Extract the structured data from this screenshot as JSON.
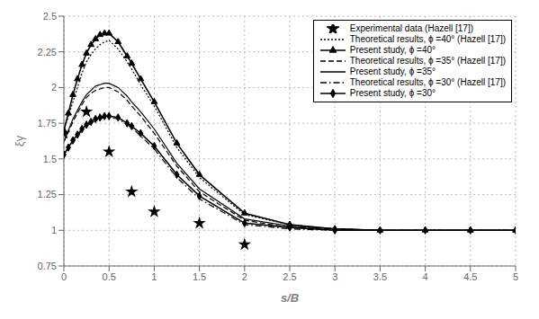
{
  "chart_data": {
    "type": "line",
    "xlabel": "s/B",
    "ylabel": "ξγ",
    "xlim": [
      0,
      5
    ],
    "ylim": [
      0.75,
      2.5
    ],
    "xticks": [
      0,
      0.5,
      1.0,
      1.5,
      2.0,
      2.5,
      3.0,
      3.5,
      4.0,
      4.5,
      5.0
    ],
    "yticks": [
      0.75,
      1.0,
      1.25,
      1.5,
      1.75,
      2.0,
      2.25,
      2.5
    ],
    "grid": true,
    "legend": "upper right",
    "series": [
      {
        "name": "Experimental data (Hazell [17])",
        "type": "scatter",
        "marker": "star",
        "color": "#000000",
        "x": [
          0.0,
          0.25,
          0.5,
          0.75,
          1.0,
          1.5,
          2.0
        ],
        "values": [
          1.68,
          1.83,
          1.55,
          1.27,
          1.13,
          1.05,
          0.9
        ]
      },
      {
        "name": "Theoretical results, ϕ =40° (Hazell [17])",
        "type": "line",
        "line_style": "dotted",
        "color": "#000000",
        "x": [
          0.0,
          0.05,
          0.1,
          0.15,
          0.2,
          0.25,
          0.3,
          0.35,
          0.4,
          0.45,
          0.5,
          0.6,
          0.7,
          0.75,
          0.85,
          1.0,
          1.25,
          1.5,
          2.0,
          2.5,
          3.0,
          3.5,
          4.0,
          4.5,
          5.0
        ],
        "values": [
          1.7,
          1.8,
          1.9,
          2.0,
          2.1,
          2.18,
          2.23,
          2.27,
          2.3,
          2.32,
          2.33,
          2.27,
          2.18,
          2.13,
          2.02,
          1.87,
          1.58,
          1.37,
          1.11,
          1.04,
          1.01,
          1.0,
          1.0,
          1.0,
          1.0
        ]
      },
      {
        "name": "Present study, ϕ =40°",
        "type": "line",
        "line_style": "solid",
        "marker": "triangle",
        "color": "#000000",
        "x": [
          0.0,
          0.05,
          0.1,
          0.15,
          0.2,
          0.25,
          0.3,
          0.35,
          0.4,
          0.45,
          0.5,
          0.6,
          0.7,
          0.75,
          0.85,
          1.0,
          1.25,
          1.5,
          2.0,
          2.5,
          3.0,
          3.5,
          4.0,
          4.5,
          5.0
        ],
        "values": [
          1.7,
          1.82,
          1.95,
          2.06,
          2.16,
          2.24,
          2.3,
          2.34,
          2.37,
          2.38,
          2.38,
          2.32,
          2.22,
          2.17,
          2.06,
          1.9,
          1.61,
          1.39,
          1.12,
          1.04,
          1.01,
          1.0,
          1.0,
          1.0,
          1.0
        ]
      },
      {
        "name": "Theoretical results, ϕ =35° (Hazell [17])",
        "type": "line",
        "line_style": "dashed",
        "color": "#000000",
        "x": [
          0.0,
          0.05,
          0.1,
          0.15,
          0.2,
          0.25,
          0.3,
          0.35,
          0.4,
          0.45,
          0.5,
          0.6,
          0.7,
          0.75,
          0.85,
          1.0,
          1.25,
          1.5,
          2.0,
          2.5,
          3.0,
          3.5,
          4.0,
          4.5,
          5.0
        ],
        "values": [
          1.62,
          1.69,
          1.76,
          1.82,
          1.88,
          1.93,
          1.96,
          1.98,
          1.99,
          2.0,
          2.0,
          1.97,
          1.91,
          1.87,
          1.8,
          1.68,
          1.45,
          1.27,
          1.07,
          1.02,
          1.01,
          1.0,
          1.0,
          1.0,
          1.0
        ]
      },
      {
        "name": "Present study, ϕ =35°",
        "type": "line",
        "line_style": "solid",
        "color": "#000000",
        "x": [
          0.0,
          0.05,
          0.1,
          0.15,
          0.2,
          0.25,
          0.3,
          0.35,
          0.4,
          0.45,
          0.5,
          0.6,
          0.7,
          0.75,
          0.85,
          1.0,
          1.25,
          1.5,
          2.0,
          2.5,
          3.0,
          3.5,
          4.0,
          4.5,
          5.0
        ],
        "values": [
          1.62,
          1.7,
          1.78,
          1.84,
          1.9,
          1.95,
          1.98,
          2.01,
          2.02,
          2.03,
          2.03,
          2.0,
          1.94,
          1.9,
          1.83,
          1.71,
          1.47,
          1.29,
          1.08,
          1.03,
          1.01,
          1.0,
          1.0,
          1.0,
          1.0
        ]
      },
      {
        "name": "Theoretical results, ϕ =30° (Hazell [17])",
        "type": "line",
        "line_style": "dashdot",
        "color": "#000000",
        "x": [
          0.0,
          0.05,
          0.1,
          0.15,
          0.2,
          0.25,
          0.3,
          0.35,
          0.4,
          0.45,
          0.5,
          0.6,
          0.7,
          0.75,
          0.85,
          1.0,
          1.25,
          1.5,
          2.0,
          2.5,
          3.0,
          3.5,
          4.0,
          4.5,
          5.0
        ],
        "values": [
          1.53,
          1.58,
          1.62,
          1.66,
          1.7,
          1.73,
          1.75,
          1.77,
          1.78,
          1.79,
          1.79,
          1.78,
          1.74,
          1.72,
          1.66,
          1.57,
          1.37,
          1.22,
          1.04,
          1.01,
          1.0,
          1.0,
          1.0,
          1.0,
          1.0
        ]
      },
      {
        "name": "Present study, ϕ =30°",
        "type": "line",
        "line_style": "solid",
        "marker": "diamond",
        "color": "#000000",
        "x": [
          0.0,
          0.05,
          0.1,
          0.15,
          0.2,
          0.25,
          0.3,
          0.35,
          0.4,
          0.45,
          0.5,
          0.6,
          0.7,
          0.75,
          0.85,
          1.0,
          1.25,
          1.5,
          2.0,
          2.5,
          3.0,
          3.5,
          4.0,
          4.5,
          5.0
        ],
        "values": [
          1.53,
          1.58,
          1.63,
          1.67,
          1.71,
          1.74,
          1.76,
          1.78,
          1.79,
          1.8,
          1.8,
          1.79,
          1.75,
          1.73,
          1.68,
          1.59,
          1.39,
          1.24,
          1.05,
          1.02,
          1.0,
          1.0,
          1.0,
          1.0,
          1.0
        ]
      }
    ]
  }
}
